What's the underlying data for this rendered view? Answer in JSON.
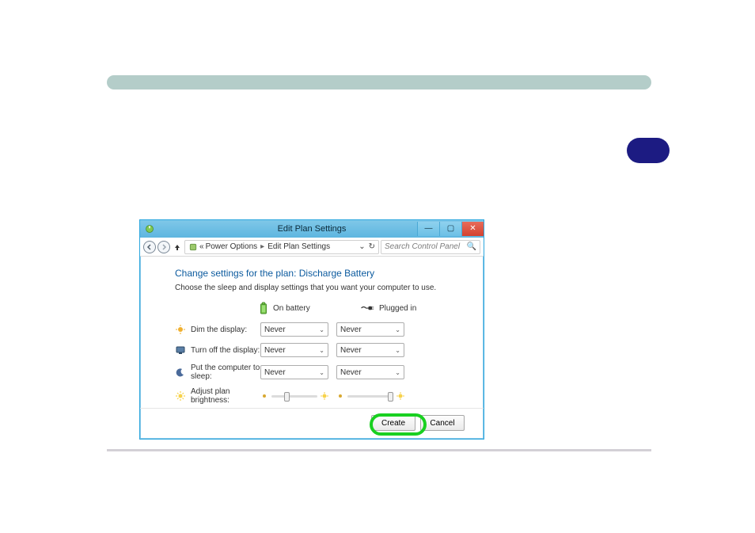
{
  "window": {
    "title": "Edit Plan Settings",
    "breadcrumbs": {
      "leading_glyph": "«",
      "seg1": "Power Options",
      "seg2": "Edit Plan Settings"
    },
    "search_placeholder": "Search Control Panel"
  },
  "heading": "Change settings for the plan: Discharge Battery",
  "subdesc": "Choose the sleep and display settings that you want your computer to use.",
  "columns": {
    "battery": "On battery",
    "plugged": "Plugged in"
  },
  "rows": {
    "dim": {
      "label": "Dim the display:",
      "battery": "Never",
      "plugged": "Never"
    },
    "off": {
      "label": "Turn off the display:",
      "battery": "Never",
      "plugged": "Never"
    },
    "sleep": {
      "label": "Put the computer to sleep:",
      "battery": "Never",
      "plugged": "Never"
    },
    "bright": {
      "label": "Adjust plan brightness:"
    }
  },
  "sliders": {
    "battery_thumb_pct": 28,
    "plugged_thumb_pct": 88
  },
  "buttons": {
    "create": "Create",
    "cancel": "Cancel"
  },
  "colors": {
    "decor_bar": "#b4cdc9",
    "decor_pill": "#1c1b82",
    "bottom_line": "#d3d0d6",
    "window_border": "#2ba6de",
    "heading": "#0b5a9e",
    "highlight_ring": "#19d020",
    "close_btn": "#d34331"
  }
}
